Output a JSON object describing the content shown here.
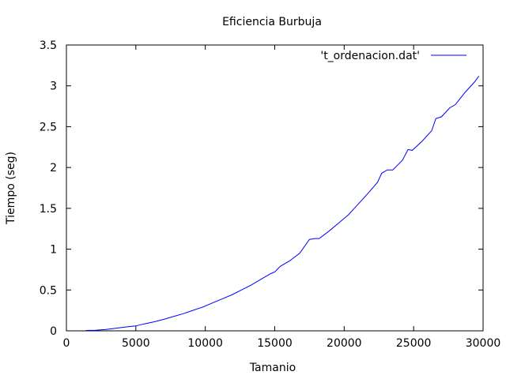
{
  "chart_data": {
    "type": "line",
    "title": "Eficiencia Burbuja",
    "xlabel": "Tamanio",
    "ylabel": "Tiempo (seg)",
    "xlim": [
      0,
      30000
    ],
    "ylim": [
      0,
      3.5
    ],
    "xticks": [
      "0",
      "5000",
      "10000",
      "15000",
      "20000",
      "25000",
      "30000"
    ],
    "yticks": [
      "0",
      "0.5",
      "1",
      "1.5",
      "2",
      "2.5",
      "3",
      "3.5"
    ],
    "grid": false,
    "legend_position": "top-right",
    "series": [
      {
        "name": "'t_ordenacion.dat'",
        "color": "#0000ff",
        "x": [
          1400,
          2100,
          2800,
          3500,
          4200,
          5000,
          5600,
          6300,
          7000,
          7700,
          8400,
          9100,
          9800,
          10500,
          11200,
          11900,
          12600,
          13300,
          14000,
          14700,
          15000,
          15400,
          16100,
          16800,
          17500,
          17900,
          18200,
          18900,
          19600,
          20300,
          21000,
          21700,
          22400,
          22700,
          23100,
          23500,
          24200,
          24600,
          24900,
          25600,
          26300,
          26600,
          27000,
          27600,
          28000,
          28700,
          29400,
          29700
        ],
        "y": [
          0.005,
          0.008,
          0.015,
          0.03,
          0.045,
          0.06,
          0.085,
          0.11,
          0.14,
          0.175,
          0.21,
          0.25,
          0.29,
          0.34,
          0.39,
          0.44,
          0.5,
          0.56,
          0.63,
          0.7,
          0.72,
          0.79,
          0.86,
          0.95,
          1.12,
          1.13,
          1.13,
          1.22,
          1.32,
          1.42,
          1.55,
          1.68,
          1.82,
          1.93,
          1.97,
          1.97,
          2.09,
          2.22,
          2.21,
          2.32,
          2.45,
          2.6,
          2.62,
          2.73,
          2.77,
          2.92,
          3.05,
          3.12
        ]
      }
    ]
  }
}
